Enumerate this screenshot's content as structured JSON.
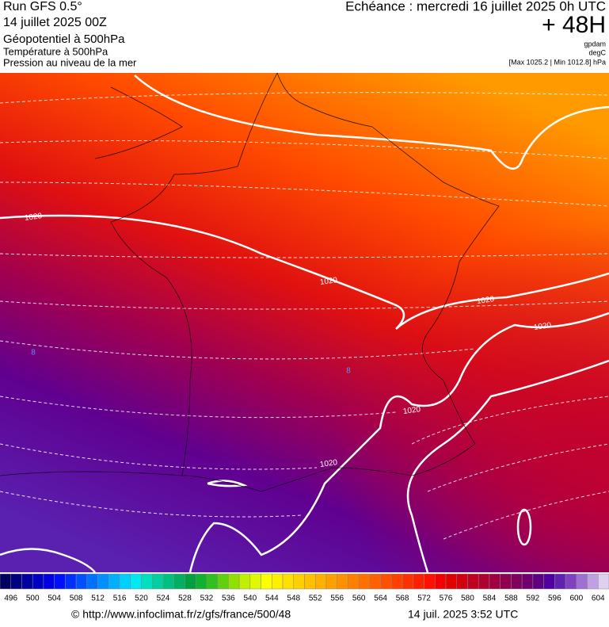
{
  "header": {
    "left": [
      "Run GFS 0.5°",
      "14 juillet 2025 00Z",
      "Géopotentiel à 500hPa",
      "Température à 500hPa",
      "Pression au niveau de la mer"
    ],
    "echeance": "Echéance : mercredi 16 juillet 2025 0h UTC",
    "range": "+ 48H",
    "unit1": "gpdam",
    "unit2": "degC",
    "extremes": "[Max 1025.2 | Min 1012.8] hPa"
  },
  "map": {
    "labels": [
      "1020",
      "1020",
      "1020",
      "1020",
      "1020",
      "1020",
      "8",
      "8"
    ]
  },
  "colorbar": {
    "labels": [
      "496",
      "500",
      "504",
      "508",
      "512",
      "516",
      "520",
      "524",
      "528",
      "532",
      "536",
      "540",
      "544",
      "548",
      "552",
      "556",
      "560",
      "564",
      "568",
      "572",
      "576",
      "580",
      "584",
      "588",
      "592",
      "596",
      "600",
      "604"
    ],
    "colors": [
      "#000060",
      "#000080",
      "#0000a0",
      "#0000c0",
      "#0000e0",
      "#0010ff",
      "#0030ff",
      "#0050ff",
      "#0070ff",
      "#0090ff",
      "#00b0ff",
      "#00d0ff",
      "#00e8f0",
      "#00e0c0",
      "#00d0a0",
      "#00c080",
      "#00b060",
      "#00a040",
      "#10b030",
      "#30c020",
      "#60d010",
      "#90e000",
      "#c0f000",
      "#e0f800",
      "#ffff00",
      "#fff000",
      "#ffe000",
      "#ffd000",
      "#ffc000",
      "#ffb000",
      "#ffa000",
      "#ff9000",
      "#ff8000",
      "#ff7000",
      "#ff6000",
      "#ff5000",
      "#ff4000",
      "#ff3000",
      "#ff2000",
      "#ff1000",
      "#f00000",
      "#e00000",
      "#d00010",
      "#c00020",
      "#b00030",
      "#a00040",
      "#900050",
      "#800060",
      "#700070",
      "#600080",
      "#5000a0",
      "#6020b0",
      "#8040c0",
      "#a070d0",
      "#c0a0e0",
      "#e0d0f0"
    ]
  },
  "footer": {
    "url": "© http://www.infoclimat.fr/z/gfs/france/500/48",
    "date": "14 juil. 2025  3:52 UTC"
  }
}
